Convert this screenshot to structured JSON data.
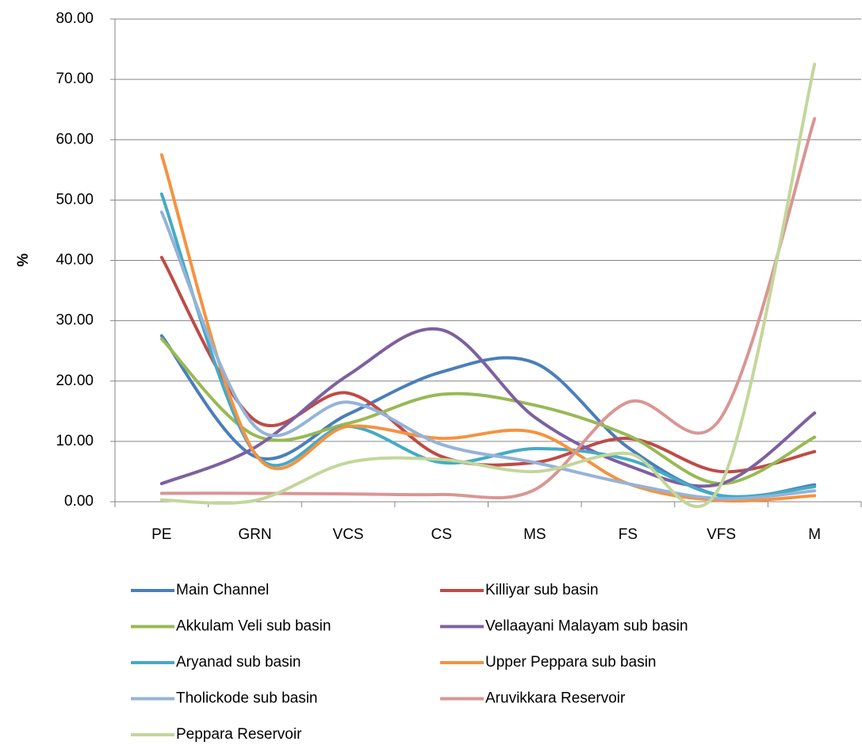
{
  "chart_data": {
    "type": "line",
    "y_label": "%",
    "categories": [
      "PE",
      "GRN",
      "VCS",
      "CS",
      "MS",
      "FS",
      "VFS",
      "M"
    ],
    "series": [
      {
        "name": "Main Channel",
        "color": "#4a7ebb",
        "values": [
          27.5,
          7.5,
          14.5,
          21.5,
          23,
          9,
          1,
          2.8
        ]
      },
      {
        "name": "Killiyar sub basin",
        "color": "#be4b48",
        "values": [
          40.5,
          13.5,
          18,
          7.5,
          6.5,
          10.5,
          5,
          8.3
        ]
      },
      {
        "name": "Akkulam Veli sub basin",
        "color": "#98b954",
        "values": [
          27,
          11,
          13,
          17.8,
          16,
          11,
          3,
          10.7
        ]
      },
      {
        "name": "Vellaayani Malayam sub basin",
        "color": "#7d60a0",
        "values": [
          3,
          9,
          21,
          28.5,
          14,
          6,
          3,
          14.7
        ]
      },
      {
        "name": "Aryanad sub basin",
        "color": "#46aac5",
        "values": [
          51,
          8,
          12.5,
          6.5,
          8.8,
          7,
          1,
          2.5
        ]
      },
      {
        "name": "Upper Peppara sub basin",
        "color": "#f69240",
        "values": [
          57.5,
          8,
          12.5,
          10.5,
          11.5,
          3,
          0.2,
          1
        ]
      },
      {
        "name": "Tholickode sub basin",
        "color": "#95b3d7",
        "values": [
          48,
          12.5,
          16.5,
          9.5,
          6.5,
          3,
          0.5,
          1.8
        ]
      },
      {
        "name": "Aruvikkara Reservoir",
        "color": "#d99694",
        "values": [
          1.4,
          1.4,
          1.3,
          1.2,
          2,
          16.5,
          14,
          63.5
        ]
      },
      {
        "name": "Peppara Reservoir",
        "color": "#c3d69b",
        "values": [
          0.3,
          0.2,
          6.5,
          7,
          5,
          8,
          3,
          72.5
        ]
      }
    ],
    "ylim": [
      0,
      80
    ],
    "yticks": [
      {
        "value": 0,
        "label": "0.00"
      },
      {
        "value": 10,
        "label": "10.00"
      },
      {
        "value": 20,
        "label": "20.00"
      },
      {
        "value": 30,
        "label": "30.00"
      },
      {
        "value": 40,
        "label": "40.00"
      },
      {
        "value": 50,
        "label": "50.00"
      },
      {
        "value": 60,
        "label": "60.00"
      },
      {
        "value": 70,
        "label": "70.00"
      },
      {
        "value": 80,
        "label": "80.00"
      }
    ],
    "grid": true,
    "legend": "bottom",
    "smooth": true
  }
}
